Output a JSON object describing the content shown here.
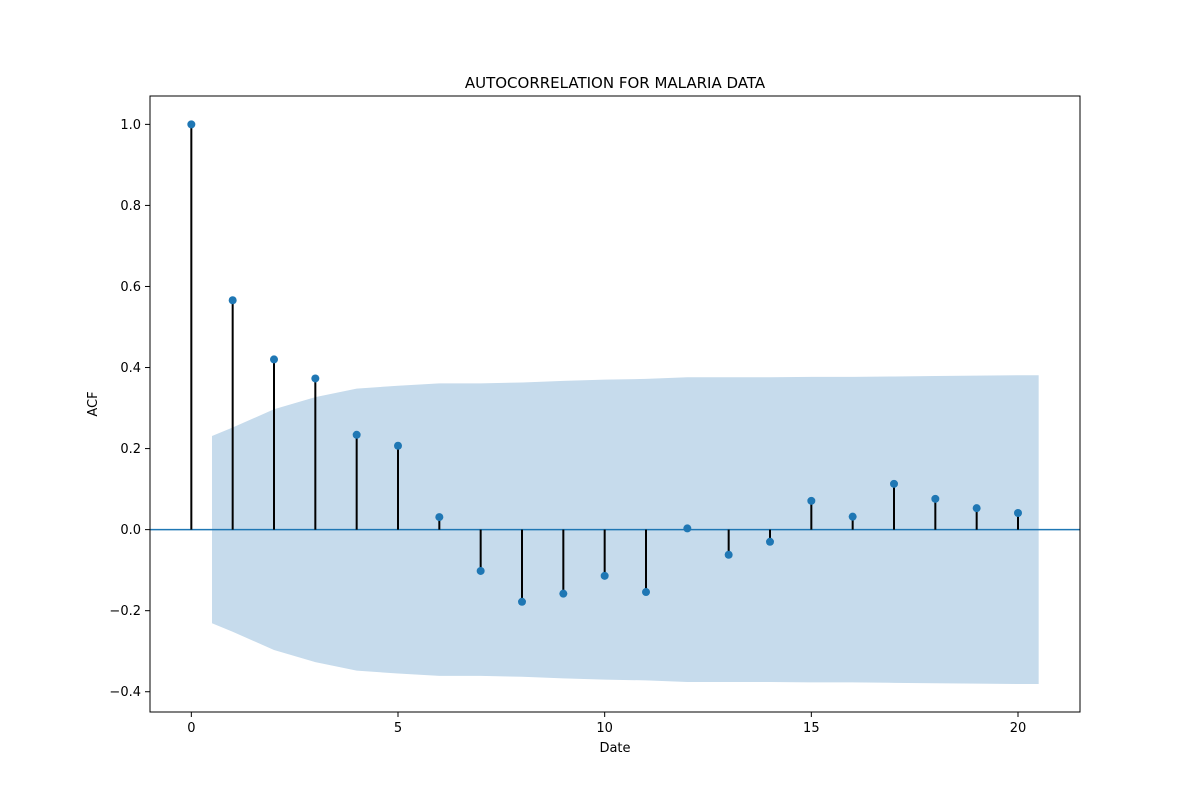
{
  "chart_data": {
    "type": "scatter",
    "subtype": "stem",
    "title": "AUTOCORRELATION FOR MALARIA DATA",
    "xlabel": "Date",
    "ylabel": "ACF",
    "xlim": [
      -1,
      21.5
    ],
    "ylim": [
      -0.45,
      1.07
    ],
    "xticks": [
      0,
      5,
      10,
      15,
      20
    ],
    "xtick_labels": [
      "0",
      "5",
      "10",
      "15",
      "20"
    ],
    "yticks": [
      -0.4,
      -0.2,
      0.0,
      0.2,
      0.4,
      0.6,
      0.8,
      1.0
    ],
    "ytick_labels": [
      "−0.4",
      "−0.2",
      "0.0",
      "0.2",
      "0.4",
      "0.6",
      "0.8",
      "1.0"
    ],
    "grid": false,
    "legend": "none",
    "zero_line": 0,
    "series": [
      {
        "x": [
          0,
          1,
          2,
          3,
          4,
          5,
          6,
          7,
          8,
          9,
          10,
          11,
          12,
          13,
          14,
          15,
          16,
          17,
          18,
          19,
          20
        ],
        "values": [
          1.0,
          0.566,
          0.42,
          0.373,
          0.234,
          0.207,
          0.031,
          -0.102,
          -0.178,
          -0.158,
          -0.114,
          -0.154,
          0.003,
          -0.062,
          -0.03,
          0.071,
          0.032,
          0.113,
          0.076,
          0.053,
          0.041
        ]
      }
    ],
    "confidence_band": {
      "x": [
        0.5,
        1,
        2,
        3,
        4,
        5,
        6,
        7,
        8,
        9,
        10,
        11,
        12,
        13,
        14,
        15,
        16,
        17,
        18,
        19,
        20,
        20.5
      ],
      "upper": [
        0.231,
        0.252,
        0.297,
        0.327,
        0.348,
        0.355,
        0.361,
        0.361,
        0.363,
        0.367,
        0.37,
        0.372,
        0.376,
        0.376,
        0.376,
        0.377,
        0.377,
        0.378,
        0.379,
        0.38,
        0.381,
        0.381
      ],
      "lower": [
        -0.231,
        -0.252,
        -0.297,
        -0.327,
        -0.348,
        -0.355,
        -0.361,
        -0.361,
        -0.363,
        -0.367,
        -0.37,
        -0.372,
        -0.376,
        -0.376,
        -0.376,
        -0.377,
        -0.377,
        -0.378,
        -0.379,
        -0.38,
        -0.381,
        -0.381
      ]
    },
    "colors": {
      "marker": "#1f77b4",
      "stem": "#000000",
      "zero_line": "#1f77b4",
      "band": "#c6dbec",
      "axes": "#000000"
    }
  }
}
